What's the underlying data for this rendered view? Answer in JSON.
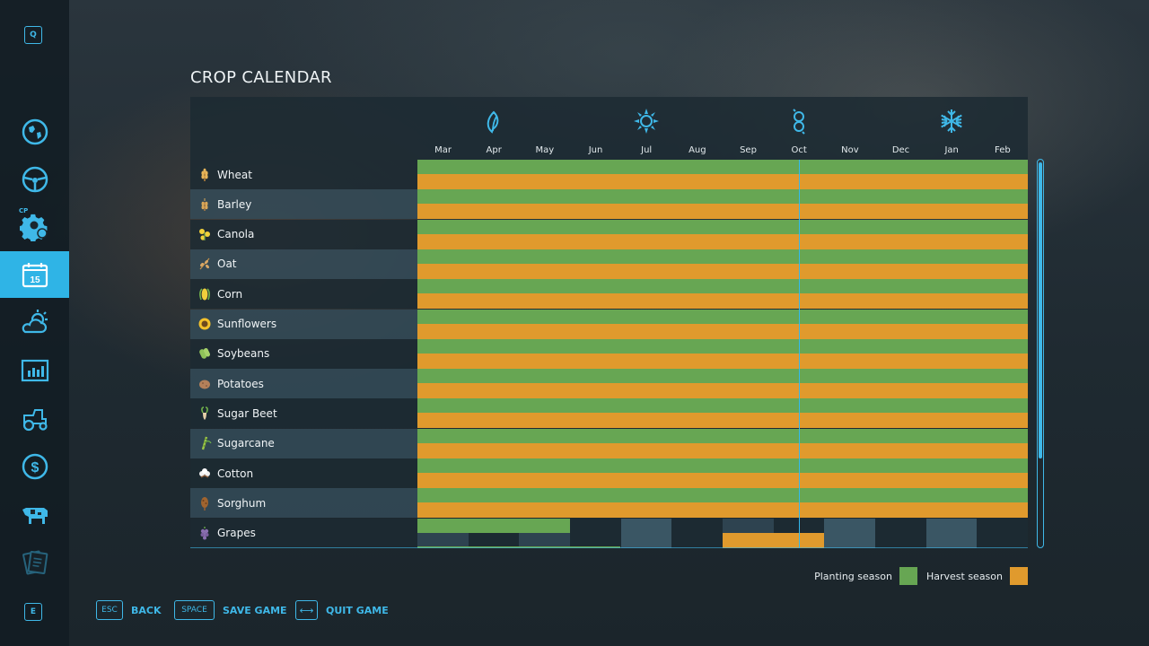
{
  "sidebar": {
    "top_key": "Q",
    "bottom_key": "E",
    "cp_tag": "CP",
    "items": [
      {
        "name": "map-icon"
      },
      {
        "name": "steering-wheel-icon"
      },
      {
        "name": "gear-icon"
      },
      {
        "name": "calendar-icon",
        "day": "15",
        "active": true
      },
      {
        "name": "weather-icon"
      },
      {
        "name": "statistics-icon"
      },
      {
        "name": "tractor-icon"
      },
      {
        "name": "finance-icon"
      },
      {
        "name": "cow-icon"
      },
      {
        "name": "help-icon"
      }
    ]
  },
  "title": "CROP CALENDAR",
  "calendar": {
    "season_icons": [
      "spring-icon",
      "summer-icon",
      "autumn-icon",
      "winter-icon"
    ],
    "months": [
      "Mar",
      "Apr",
      "May",
      "Jun",
      "Jul",
      "Aug",
      "Sep",
      "Oct",
      "Nov",
      "Dec",
      "Jan",
      "Feb"
    ],
    "current_month": "Oct",
    "crops": [
      {
        "name": "Wheat",
        "icon": "wheat-icon",
        "planting": "all-year",
        "harvest": "all-year"
      },
      {
        "name": "Barley",
        "icon": "barley-icon",
        "planting": "all-year",
        "harvest": "all-year"
      },
      {
        "name": "Canola",
        "icon": "canola-icon",
        "planting": "all-year",
        "harvest": "all-year"
      },
      {
        "name": "Oat",
        "icon": "oat-icon",
        "planting": "all-year",
        "harvest": "all-year"
      },
      {
        "name": "Corn",
        "icon": "corn-icon",
        "planting": "all-year",
        "harvest": "all-year"
      },
      {
        "name": "Sunflowers",
        "icon": "sunflower-icon",
        "planting": "all-year",
        "harvest": "all-year"
      },
      {
        "name": "Soybeans",
        "icon": "soybean-icon",
        "planting": "all-year",
        "harvest": "all-year"
      },
      {
        "name": "Potatoes",
        "icon": "potato-icon",
        "planting": "all-year",
        "harvest": "all-year"
      },
      {
        "name": "Sugar Beet",
        "icon": "sugar-beet-icon",
        "planting": "all-year",
        "harvest": "all-year"
      },
      {
        "name": "Sugarcane",
        "icon": "sugarcane-icon",
        "planting": "all-year",
        "harvest": "all-year"
      },
      {
        "name": "Cotton",
        "icon": "cotton-icon",
        "planting": "all-year",
        "harvest": "all-year"
      },
      {
        "name": "Sorghum",
        "icon": "sorghum-icon",
        "planting": "all-year",
        "harvest": "all-year"
      },
      {
        "name": "Grapes",
        "icon": "grapes-icon",
        "planting": [
          "Mar",
          "Apr",
          "May"
        ],
        "harvest": [
          "Sep",
          "Oct"
        ]
      }
    ]
  },
  "legend": {
    "planting_label": "Planting season",
    "harvest_label": "Harvest season",
    "planting_color": "#67a653",
    "harvest_color": "#e09a2d"
  },
  "footer": {
    "back": {
      "key": "ESC",
      "label": "BACK"
    },
    "save": {
      "key": "SPACE",
      "label": "SAVE GAME"
    },
    "quit": {
      "key": "⟷",
      "label": "QUIT GAME"
    }
  }
}
